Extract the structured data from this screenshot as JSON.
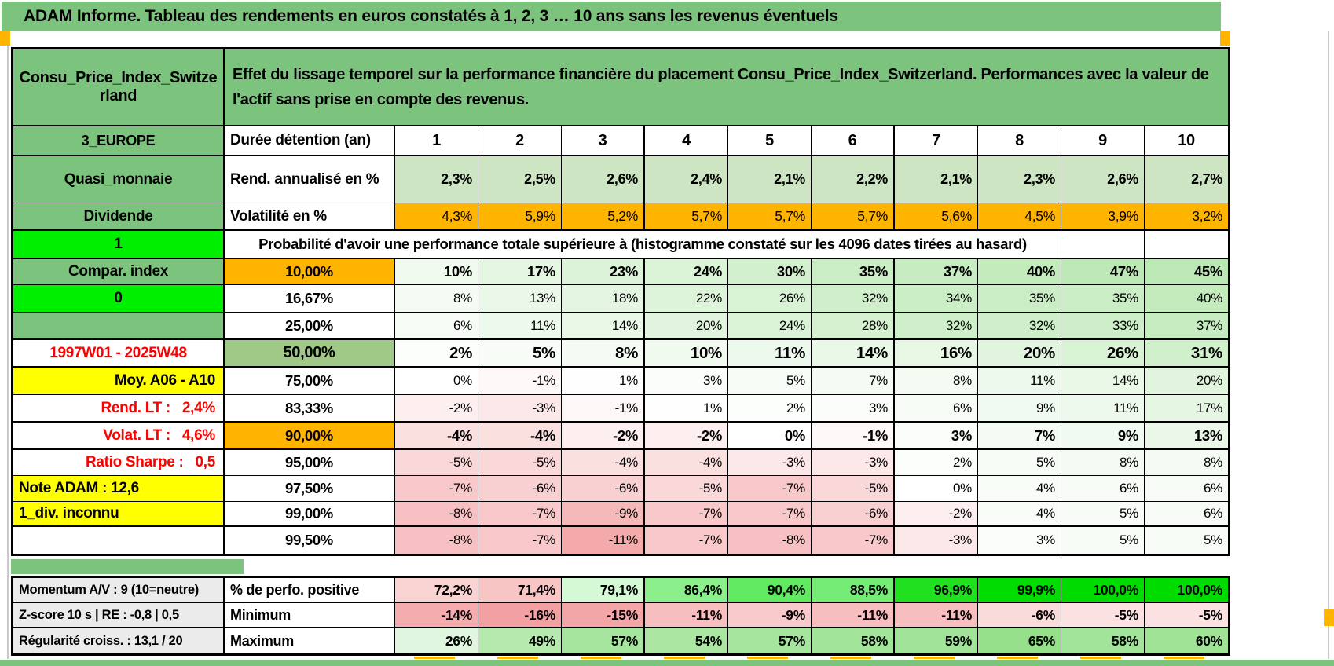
{
  "title": "ADAM Informe. Tableau des rendements en euros constatés à 1, 2, 3 … 10 ans sans les revenus éventuels",
  "colors": {
    "title_green": "#7CC47E",
    "bright_green": "#00EF00",
    "orange": "#FFB400",
    "yellow": "#FFFF00",
    "sage_green": "#A0C887",
    "rend_green": "#CDE5C2",
    "red_text": "#FF0000",
    "grey_label": "#EBEBEB",
    "positive_green_max": "#BBE8B4",
    "negative_pink_max": "#F4A9AB",
    "perfo_green": "#00DC00",
    "min_red": "#F2A0A2",
    "max_green": "#96E08C"
  },
  "left_column": {
    "header": "Consu_Price_Index_Switzerland",
    "rows": [
      "3_EUROPE",
      "Quasi_monnaie",
      "Dividende",
      "1",
      "Compar. index",
      "0",
      "",
      "1997W01 - 2025W48",
      "Moy. A06 - A10",
      "Rend. LT :   2,4%",
      "Volat. LT :   4,6%",
      "Ratio Sharpe :   0,5",
      "Note ADAM : 12,6",
      "1_div. inconnu",
      ""
    ],
    "footer": [
      "Momentum A/V : 9 (10=neutre)",
      "Z-score 10 s | RE : -0,8 | 0,5",
      "Régularité croiss. : 13,1 / 20"
    ]
  },
  "main": {
    "header_note": "Effet du lissage temporel sur la performance financière du placement Consu_Price_Index_Switzerland. Performances avec la valeur de l'actif sans prise en compte des revenus.",
    "duration_label": "Durée détention (an)",
    "durations": [
      "1",
      "2",
      "3",
      "4",
      "5",
      "6",
      "7",
      "8",
      "9",
      "10"
    ],
    "rend_label": "Rend. annualisé en %",
    "rend_values": [
      "2,3%",
      "2,5%",
      "2,6%",
      "2,4%",
      "2,1%",
      "2,2%",
      "2,1%",
      "2,3%",
      "2,6%",
      "2,7%"
    ],
    "volat_label": "Volatilité en %",
    "volat_values": [
      "4,3%",
      "5,9%",
      "5,2%",
      "5,7%",
      "5,7%",
      "5,7%",
      "5,6%",
      "4,5%",
      "3,9%",
      "3,2%"
    ],
    "prob_header": "Probabilité d'avoir une performance totale supérieure à (histogramme constaté sur les 4096 dates tirées au hasard)",
    "quantile_rows": [
      {
        "label": "10,00%",
        "values": [
          "10%",
          "17%",
          "23%",
          "24%",
          "30%",
          "35%",
          "37%",
          "40%",
          "47%",
          "45%"
        ]
      },
      {
        "label": "16,67%",
        "values": [
          "8%",
          "13%",
          "18%",
          "22%",
          "26%",
          "32%",
          "34%",
          "35%",
          "35%",
          "40%"
        ]
      },
      {
        "label": "25,00%",
        "values": [
          "6%",
          "11%",
          "14%",
          "20%",
          "24%",
          "28%",
          "32%",
          "32%",
          "33%",
          "37%"
        ]
      },
      {
        "label": "50,00%",
        "values": [
          "2%",
          "5%",
          "8%",
          "10%",
          "11%",
          "14%",
          "16%",
          "20%",
          "26%",
          "31%"
        ]
      },
      {
        "label": "75,00%",
        "values": [
          "0%",
          "-1%",
          "1%",
          "3%",
          "5%",
          "7%",
          "8%",
          "11%",
          "14%",
          "20%"
        ]
      },
      {
        "label": "83,33%",
        "values": [
          "-2%",
          "-3%",
          "-1%",
          "1%",
          "2%",
          "3%",
          "6%",
          "9%",
          "11%",
          "17%"
        ]
      },
      {
        "label": "90,00%",
        "values": [
          "-4%",
          "-4%",
          "-2%",
          "-2%",
          "0%",
          "-1%",
          "3%",
          "7%",
          "9%",
          "13%"
        ]
      },
      {
        "label": "95,00%",
        "values": [
          "-5%",
          "-5%",
          "-4%",
          "-4%",
          "-3%",
          "-3%",
          "2%",
          "5%",
          "8%",
          "8%"
        ]
      },
      {
        "label": "97,50%",
        "values": [
          "-7%",
          "-6%",
          "-6%",
          "-5%",
          "-7%",
          "-5%",
          "0%",
          "4%",
          "6%",
          "6%"
        ]
      },
      {
        "label": "99,00%",
        "values": [
          "-8%",
          "-7%",
          "-9%",
          "-7%",
          "-7%",
          "-6%",
          "-2%",
          "4%",
          "5%",
          "6%"
        ]
      },
      {
        "label": "99,50%",
        "values": [
          "-8%",
          "-7%",
          "-11%",
          "-7%",
          "-8%",
          "-7%",
          "-3%",
          "3%",
          "5%",
          "5%"
        ]
      }
    ]
  },
  "summary": {
    "rows": [
      {
        "label": "% de perfo. positive",
        "values": [
          "72,2%",
          "71,4%",
          "79,1%",
          "86,4%",
          "90,4%",
          "88,5%",
          "96,9%",
          "99,9%",
          "100,0%",
          "100,0%"
        ]
      },
      {
        "label": "Minimum",
        "values": [
          "-14%",
          "-16%",
          "-15%",
          "-11%",
          "-9%",
          "-11%",
          "-11%",
          "-6%",
          "-5%",
          "-5%"
        ]
      },
      {
        "label": "Maximum",
        "values": [
          "26%",
          "49%",
          "57%",
          "54%",
          "57%",
          "58%",
          "59%",
          "65%",
          "58%",
          "60%"
        ]
      }
    ]
  }
}
